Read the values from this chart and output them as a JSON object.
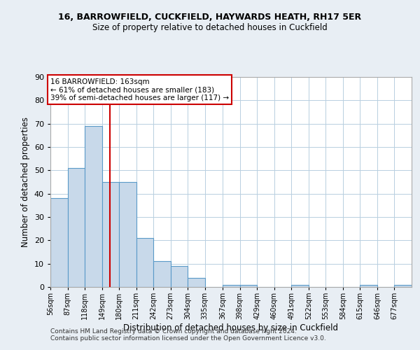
{
  "title1": "16, BARROWFIELD, CUCKFIELD, HAYWARDS HEATH, RH17 5ER",
  "title2": "Size of property relative to detached houses in Cuckfield",
  "xlabel": "Distribution of detached houses by size in Cuckfield",
  "ylabel": "Number of detached properties",
  "bin_labels": [
    "56sqm",
    "87sqm",
    "118sqm",
    "149sqm",
    "180sqm",
    "211sqm",
    "242sqm",
    "273sqm",
    "304sqm",
    "335sqm",
    "367sqm",
    "398sqm",
    "429sqm",
    "460sqm",
    "491sqm",
    "522sqm",
    "553sqm",
    "584sqm",
    "615sqm",
    "646sqm",
    "677sqm"
  ],
  "bin_edges": [
    56,
    87,
    118,
    149,
    180,
    211,
    242,
    273,
    304,
    335,
    367,
    398,
    429,
    460,
    491,
    522,
    553,
    584,
    615,
    646,
    677,
    708
  ],
  "bar_heights": [
    38,
    51,
    69,
    45,
    45,
    21,
    11,
    9,
    4,
    0,
    1,
    1,
    0,
    0,
    1,
    0,
    0,
    0,
    1,
    0,
    1
  ],
  "bar_color": "#c8d9ea",
  "bar_edge_color": "#5a9ac8",
  "red_line_x": 163,
  "ylim": [
    0,
    90
  ],
  "yticks": [
    0,
    10,
    20,
    30,
    40,
    50,
    60,
    70,
    80,
    90
  ],
  "annotation_line1": "16 BARROWFIELD: 163sqm",
  "annotation_line2": "← 61% of detached houses are smaller (183)",
  "annotation_line3": "39% of semi-detached houses are larger (117) →",
  "annotation_box_color": "#ffffff",
  "annotation_box_edge_color": "#cc0000",
  "footer1": "Contains HM Land Registry data © Crown copyright and database right 2024.",
  "footer2": "Contains public sector information licensed under the Open Government Licence v3.0.",
  "background_color": "#e8eef4",
  "plot_background_color": "#ffffff",
  "grid_color": "#b8cfe0"
}
